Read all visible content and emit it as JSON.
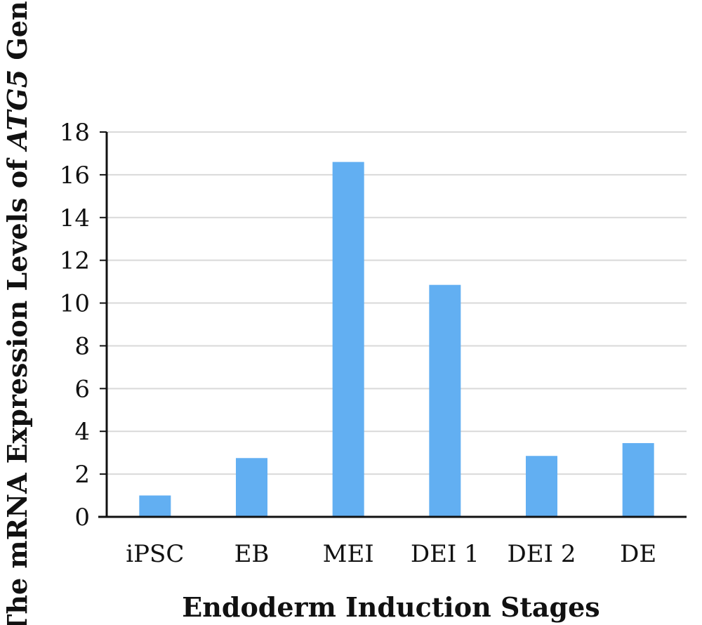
{
  "chart_data": {
    "type": "bar",
    "categories": [
      "iPSC",
      "EB",
      "MEI",
      "DEI 1",
      "DEI 2",
      "DE"
    ],
    "series": [
      {
        "values": [
          1.0,
          2.75,
          16.6,
          10.85,
          2.85,
          3.45
        ]
      }
    ],
    "xlabel": "Endoderm Induction Stages",
    "ylabel": {
      "prefix": "The mRNA Expression Levels of ",
      "gene": "ATG5",
      "suffix": " Gene"
    },
    "ylim": [
      0,
      18
    ],
    "yticks": [
      0,
      2,
      4,
      6,
      8,
      10,
      12,
      14,
      16,
      18
    ],
    "grid": true,
    "bar_color": "#62aff2",
    "grid_color": "#d9d9d9",
    "axis_color": "#111111"
  }
}
